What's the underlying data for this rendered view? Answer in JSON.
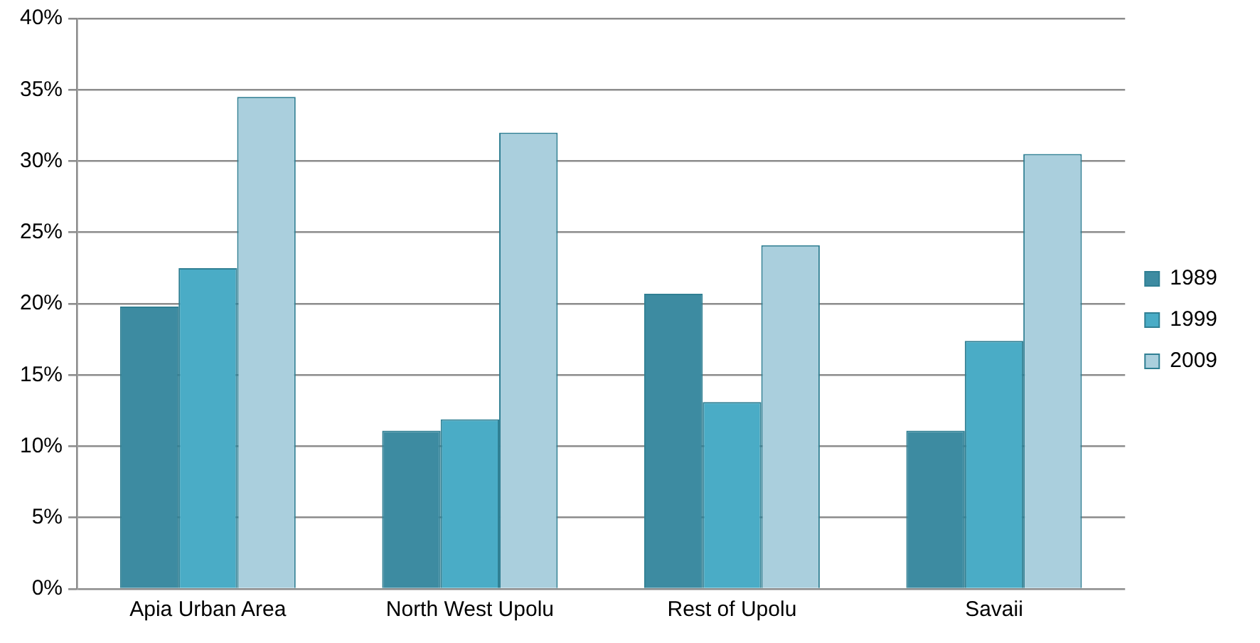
{
  "chart_data": {
    "type": "bar",
    "categories": [
      "Apia Urban Area",
      "North West Upolu",
      "Rest of Upolu",
      "Savaii"
    ],
    "series": [
      {
        "name": "1989",
        "color": "#3d8ba1",
        "values": [
          19.8,
          11.1,
          20.7,
          11.1
        ]
      },
      {
        "name": "1999",
        "color": "#4aacc6",
        "values": [
          22.5,
          11.9,
          13.1,
          17.4
        ]
      },
      {
        "name": "2009",
        "color": "#aacfdd",
        "values": [
          34.5,
          32.0,
          24.1,
          30.5
        ]
      }
    ],
    "ylim": [
      0,
      40
    ],
    "yticks": [
      {
        "value": 0,
        "label": "0%"
      },
      {
        "value": 5,
        "label": "5%"
      },
      {
        "value": 10,
        "label": "10%"
      },
      {
        "value": 15,
        "label": "15%"
      },
      {
        "value": 20,
        "label": "20%"
      },
      {
        "value": 25,
        "label": "25%"
      },
      {
        "value": 30,
        "label": "30%"
      },
      {
        "value": 35,
        "label": "35%"
      },
      {
        "value": 40,
        "label": "40%"
      }
    ],
    "grid": "y",
    "legend": "right"
  }
}
